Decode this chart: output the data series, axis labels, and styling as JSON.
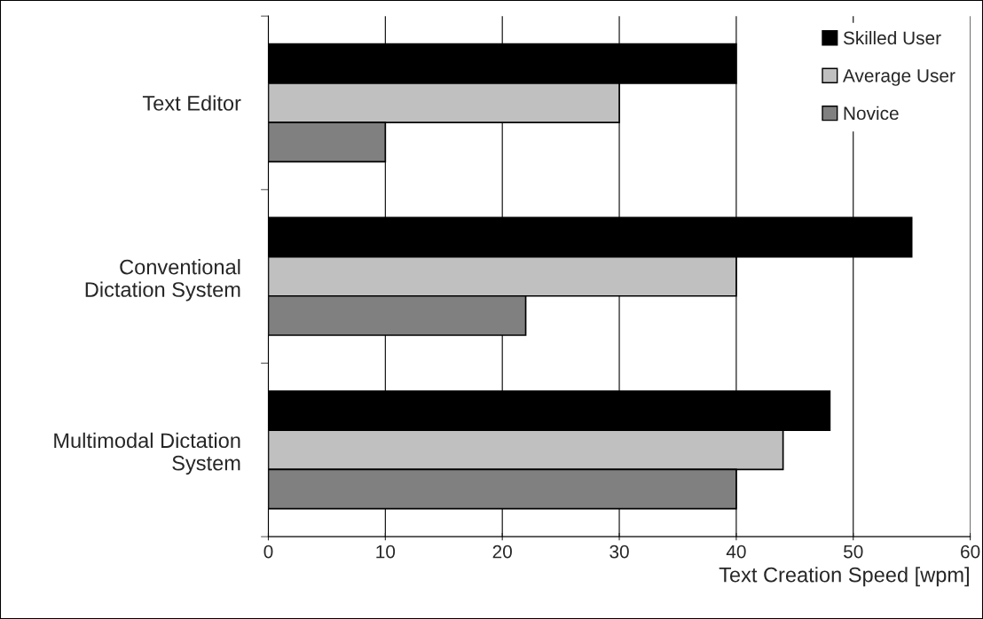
{
  "chart_data": {
    "type": "bar",
    "orientation": "horizontal",
    "xlabel": "Text Creation Speed [wpm]",
    "categories": [
      "Text Editor",
      "Conventional\nDictation System",
      "Multimodal Dictation\nSystem"
    ],
    "series": [
      {
        "name": "Skilled User",
        "color": "#000000",
        "values": [
          40,
          55,
          48
        ]
      },
      {
        "name": "Average User",
        "color": "#c0c0c0",
        "values": [
          30,
          40,
          44
        ]
      },
      {
        "name": "Novice",
        "color": "#808080",
        "values": [
          10,
          22,
          40
        ]
      }
    ],
    "xlim": [
      0,
      60
    ],
    "xticks": [
      0,
      10,
      20,
      30,
      40,
      50,
      60
    ],
    "grid": "x",
    "legend": "top right"
  }
}
